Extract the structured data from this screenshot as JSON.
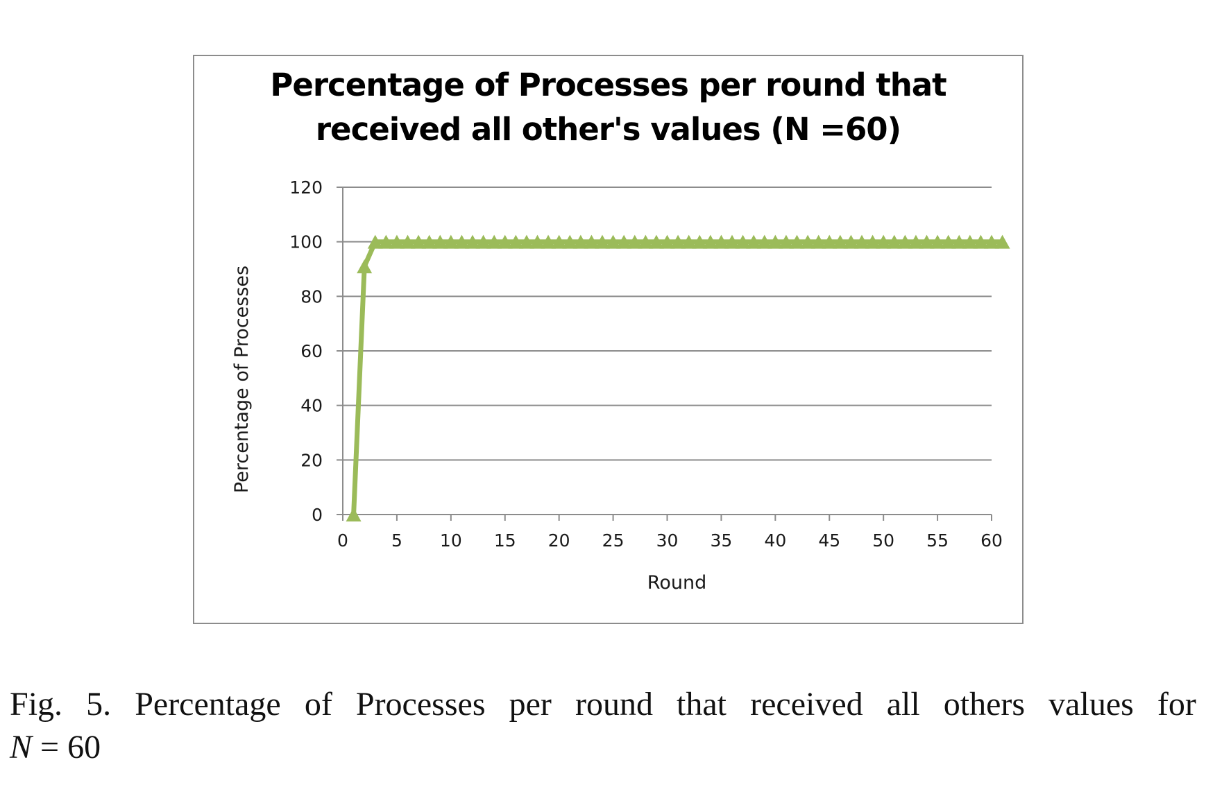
{
  "chart_data": {
    "type": "line",
    "title_lines": [
      "Percentage of Processes per round that",
      "received all other's values (N =60)"
    ],
    "xlabel": "Round",
    "ylabel": "Percentage of Processes",
    "xlim": [
      0,
      60
    ],
    "ylim": [
      0,
      120
    ],
    "xticks": [
      0,
      5,
      10,
      15,
      20,
      25,
      30,
      35,
      40,
      45,
      50,
      55,
      60
    ],
    "yticks": [
      0,
      20,
      40,
      60,
      80,
      100,
      120
    ],
    "grid": true,
    "legend": "none",
    "marker": "triangle",
    "color": "#9bbb59",
    "series": [
      {
        "x": [
          1,
          2,
          3,
          4,
          5,
          6,
          7,
          8,
          9,
          10,
          11,
          12,
          13,
          14,
          15,
          16,
          17,
          18,
          19,
          20,
          21,
          22,
          23,
          24,
          25,
          26,
          27,
          28,
          29,
          30,
          31,
          32,
          33,
          34,
          35,
          36,
          37,
          38,
          39,
          40,
          41,
          42,
          43,
          44,
          45,
          46,
          47,
          48,
          49,
          50,
          51,
          52,
          53,
          54,
          55,
          56,
          57,
          58,
          59,
          60,
          61
        ],
        "values": [
          0,
          91,
          100,
          100,
          100,
          100,
          100,
          100,
          100,
          100,
          100,
          100,
          100,
          100,
          100,
          100,
          100,
          100,
          100,
          100,
          100,
          100,
          100,
          100,
          100,
          100,
          100,
          100,
          100,
          100,
          100,
          100,
          100,
          100,
          100,
          100,
          100,
          100,
          100,
          100,
          100,
          100,
          100,
          100,
          100,
          100,
          100,
          100,
          100,
          100,
          100,
          100,
          100,
          100,
          100,
          100,
          100,
          100,
          100,
          100,
          100
        ]
      }
    ]
  },
  "caption": {
    "words": [
      "Fig.",
      "5.",
      "Percentage",
      "of",
      "Processes",
      "per",
      "round",
      "that",
      "received",
      "all",
      "others",
      "values",
      "for"
    ],
    "math_var": "N",
    "math_eq": "=",
    "math_val": "60"
  }
}
